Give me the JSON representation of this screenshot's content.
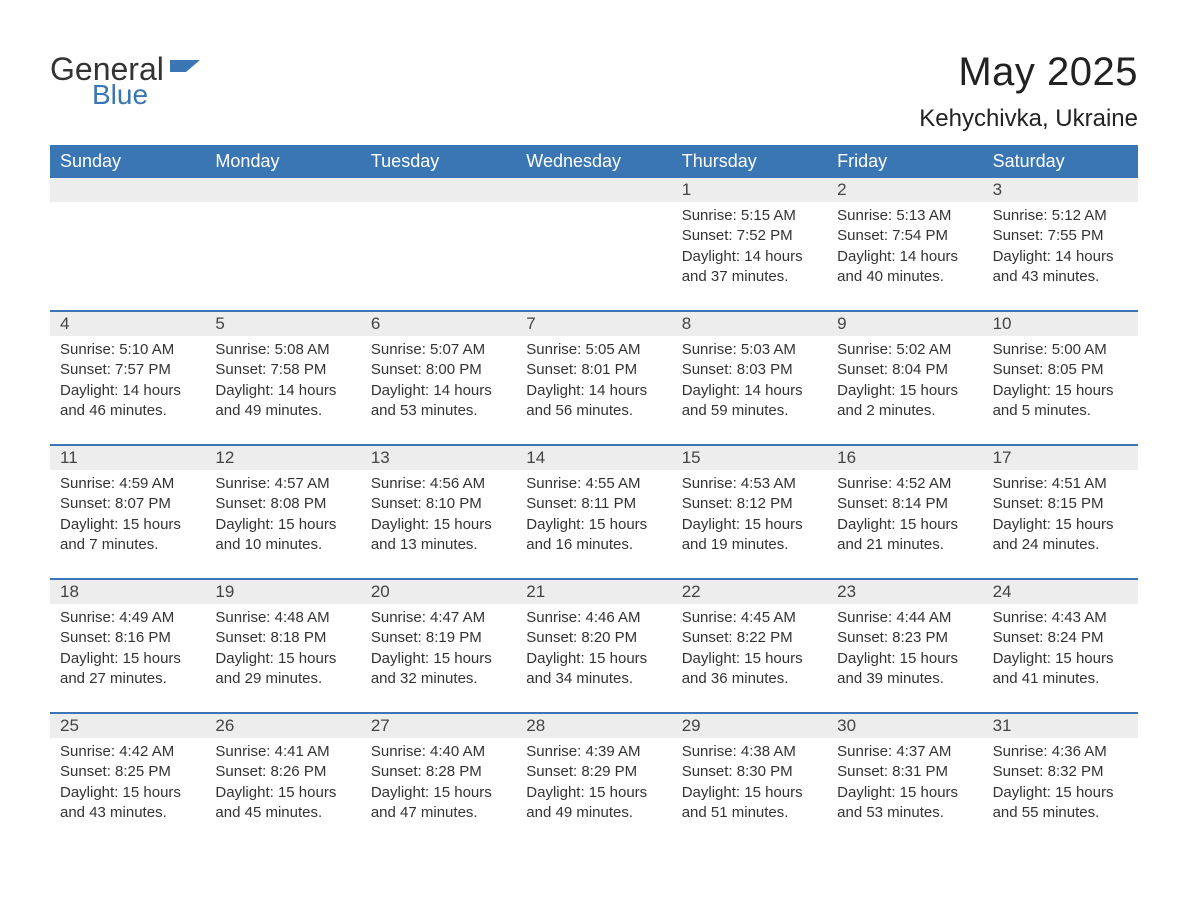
{
  "logo": {
    "text1": "General",
    "text2": "Blue"
  },
  "title": "May 2025",
  "location": "Kehychivka, Ukraine",
  "colors": {
    "header_bg": "#3a76b4",
    "header_text": "#ffffff",
    "date_bg": "#ededed",
    "week_border": "#3a76b4",
    "body_text": "#333333"
  },
  "day_labels": [
    "Sunday",
    "Monday",
    "Tuesday",
    "Wednesday",
    "Thursday",
    "Friday",
    "Saturday"
  ],
  "weeks": [
    [
      null,
      null,
      null,
      null,
      {
        "d": "1",
        "sr": "5:15 AM",
        "ss": "7:52 PM",
        "dl": "14 hours and 37 minutes."
      },
      {
        "d": "2",
        "sr": "5:13 AM",
        "ss": "7:54 PM",
        "dl": "14 hours and 40 minutes."
      },
      {
        "d": "3",
        "sr": "5:12 AM",
        "ss": "7:55 PM",
        "dl": "14 hours and 43 minutes."
      }
    ],
    [
      {
        "d": "4",
        "sr": "5:10 AM",
        "ss": "7:57 PM",
        "dl": "14 hours and 46 minutes."
      },
      {
        "d": "5",
        "sr": "5:08 AM",
        "ss": "7:58 PM",
        "dl": "14 hours and 49 minutes."
      },
      {
        "d": "6",
        "sr": "5:07 AM",
        "ss": "8:00 PM",
        "dl": "14 hours and 53 minutes."
      },
      {
        "d": "7",
        "sr": "5:05 AM",
        "ss": "8:01 PM",
        "dl": "14 hours and 56 minutes."
      },
      {
        "d": "8",
        "sr": "5:03 AM",
        "ss": "8:03 PM",
        "dl": "14 hours and 59 minutes."
      },
      {
        "d": "9",
        "sr": "5:02 AM",
        "ss": "8:04 PM",
        "dl": "15 hours and 2 minutes."
      },
      {
        "d": "10",
        "sr": "5:00 AM",
        "ss": "8:05 PM",
        "dl": "15 hours and 5 minutes."
      }
    ],
    [
      {
        "d": "11",
        "sr": "4:59 AM",
        "ss": "8:07 PM",
        "dl": "15 hours and 7 minutes."
      },
      {
        "d": "12",
        "sr": "4:57 AM",
        "ss": "8:08 PM",
        "dl": "15 hours and 10 minutes."
      },
      {
        "d": "13",
        "sr": "4:56 AM",
        "ss": "8:10 PM",
        "dl": "15 hours and 13 minutes."
      },
      {
        "d": "14",
        "sr": "4:55 AM",
        "ss": "8:11 PM",
        "dl": "15 hours and 16 minutes."
      },
      {
        "d": "15",
        "sr": "4:53 AM",
        "ss": "8:12 PM",
        "dl": "15 hours and 19 minutes."
      },
      {
        "d": "16",
        "sr": "4:52 AM",
        "ss": "8:14 PM",
        "dl": "15 hours and 21 minutes."
      },
      {
        "d": "17",
        "sr": "4:51 AM",
        "ss": "8:15 PM",
        "dl": "15 hours and 24 minutes."
      }
    ],
    [
      {
        "d": "18",
        "sr": "4:49 AM",
        "ss": "8:16 PM",
        "dl": "15 hours and 27 minutes."
      },
      {
        "d": "19",
        "sr": "4:48 AM",
        "ss": "8:18 PM",
        "dl": "15 hours and 29 minutes."
      },
      {
        "d": "20",
        "sr": "4:47 AM",
        "ss": "8:19 PM",
        "dl": "15 hours and 32 minutes."
      },
      {
        "d": "21",
        "sr": "4:46 AM",
        "ss": "8:20 PM",
        "dl": "15 hours and 34 minutes."
      },
      {
        "d": "22",
        "sr": "4:45 AM",
        "ss": "8:22 PM",
        "dl": "15 hours and 36 minutes."
      },
      {
        "d": "23",
        "sr": "4:44 AM",
        "ss": "8:23 PM",
        "dl": "15 hours and 39 minutes."
      },
      {
        "d": "24",
        "sr": "4:43 AM",
        "ss": "8:24 PM",
        "dl": "15 hours and 41 minutes."
      }
    ],
    [
      {
        "d": "25",
        "sr": "4:42 AM",
        "ss": "8:25 PM",
        "dl": "15 hours and 43 minutes."
      },
      {
        "d": "26",
        "sr": "4:41 AM",
        "ss": "8:26 PM",
        "dl": "15 hours and 45 minutes."
      },
      {
        "d": "27",
        "sr": "4:40 AM",
        "ss": "8:28 PM",
        "dl": "15 hours and 47 minutes."
      },
      {
        "d": "28",
        "sr": "4:39 AM",
        "ss": "8:29 PM",
        "dl": "15 hours and 49 minutes."
      },
      {
        "d": "29",
        "sr": "4:38 AM",
        "ss": "8:30 PM",
        "dl": "15 hours and 51 minutes."
      },
      {
        "d": "30",
        "sr": "4:37 AM",
        "ss": "8:31 PM",
        "dl": "15 hours and 53 minutes."
      },
      {
        "d": "31",
        "sr": "4:36 AM",
        "ss": "8:32 PM",
        "dl": "15 hours and 55 minutes."
      }
    ]
  ],
  "labels": {
    "sunrise": "Sunrise: ",
    "sunset": "Sunset: ",
    "daylight": "Daylight: "
  }
}
